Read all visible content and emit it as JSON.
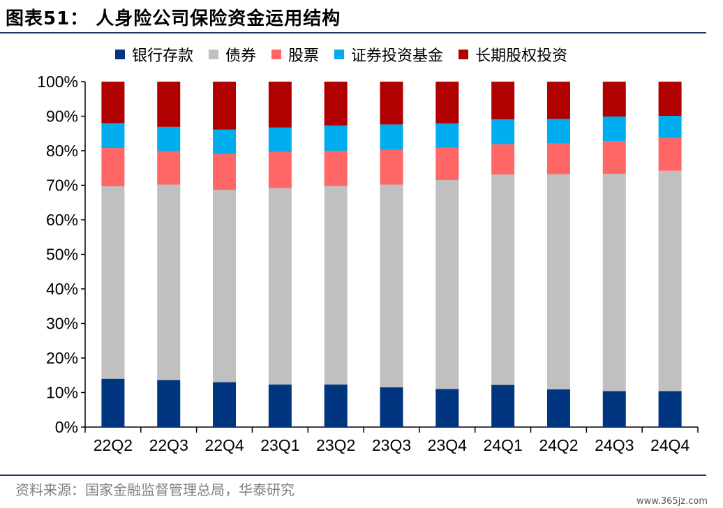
{
  "title": "图表51： 人身险公司保险资金运用结构",
  "source": "资料来源：国家金融监督管理总局，华泰研究",
  "watermark": "www.365jz.com",
  "chart_data": {
    "type": "bar",
    "stacked": true,
    "categories": [
      "22Q2",
      "22Q3",
      "22Q4",
      "23Q1",
      "23Q2",
      "23Q3",
      "23Q4",
      "24Q1",
      "24Q2",
      "24Q3",
      "24Q4"
    ],
    "series": [
      {
        "name": "银行存款",
        "color": "#003580",
        "values": [
          14.0,
          13.6,
          13.0,
          12.3,
          12.3,
          11.5,
          11.0,
          12.2,
          10.9,
          10.4,
          10.4
        ]
      },
      {
        "name": "债券",
        "color": "#c0c0c0",
        "values": [
          55.7,
          56.6,
          55.7,
          56.9,
          57.5,
          58.7,
          60.5,
          60.9,
          62.3,
          62.9,
          63.8
        ]
      },
      {
        "name": "股票",
        "color": "#ff6666",
        "values": [
          11.1,
          9.7,
          10.4,
          10.5,
          10.2,
          10.1,
          9.4,
          8.8,
          8.9,
          9.5,
          9.5
        ]
      },
      {
        "name": "证券投资基金",
        "color": "#00aeef",
        "values": [
          7.2,
          7.0,
          7.0,
          7.0,
          7.3,
          7.3,
          7.0,
          7.2,
          7.1,
          7.1,
          6.4
        ]
      },
      {
        "name": "长期股权投资",
        "color": "#b00000",
        "values": [
          12.0,
          13.1,
          13.9,
          13.3,
          12.7,
          12.4,
          12.1,
          10.9,
          10.8,
          10.1,
          9.9
        ]
      }
    ],
    "ylim": [
      0,
      100
    ],
    "yticks": [
      "0%",
      "10%",
      "20%",
      "30%",
      "40%",
      "50%",
      "60%",
      "70%",
      "80%",
      "90%",
      "100%"
    ],
    "grid": false,
    "legend_position": "top"
  }
}
